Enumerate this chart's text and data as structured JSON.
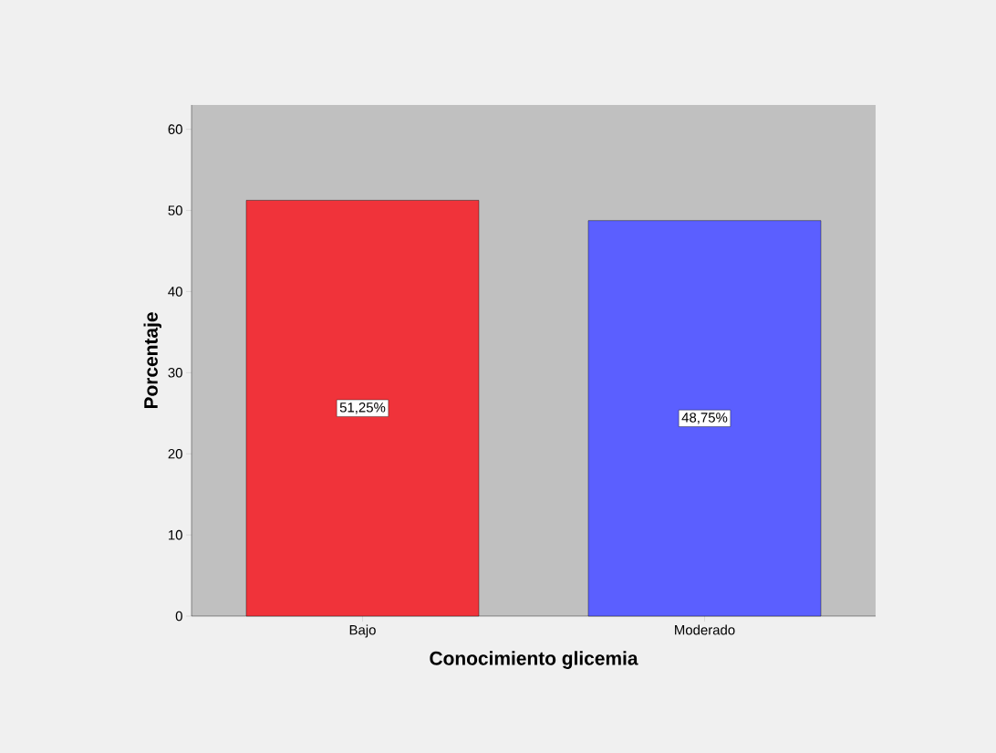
{
  "chart_data": {
    "type": "bar",
    "xlabel": "Conocimiento glicemia",
    "ylabel": "Porcentaje",
    "categories": [
      "Bajo",
      "Moderado"
    ],
    "values": [
      51.25,
      48.75
    ],
    "colors": [
      "#f0333a",
      "#5b5fff"
    ],
    "value_labels": [
      "51,25%",
      "48,75%"
    ],
    "ylim": [
      0,
      63
    ],
    "yticks": [
      0,
      10,
      20,
      30,
      40,
      50,
      60
    ]
  }
}
